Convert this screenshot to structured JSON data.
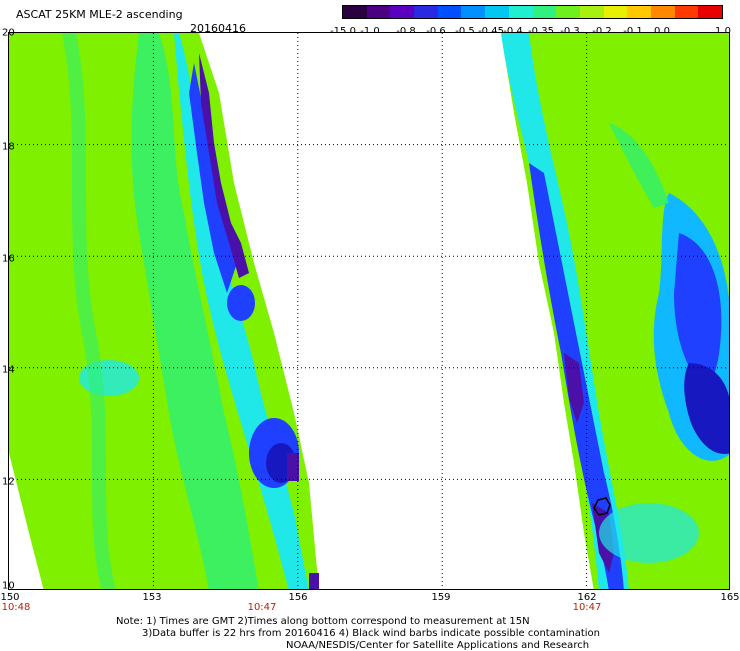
{
  "header": {
    "title": "ASCAT 25KM MLE-2 ascending",
    "date": "20160416"
  },
  "colorbar": {
    "labels": [
      "-15.0",
      "-1.0",
      "-0.8",
      "-0.6",
      "-0.5",
      "-0.45",
      "-0.4",
      "-0.35",
      "-0.3",
      "-0.2",
      "-0.1",
      "0.0",
      "1.0"
    ],
    "colors": [
      "#2a0040",
      "#4b0082",
      "#5a00c0",
      "#2a2ae0",
      "#0050ff",
      "#0090ff",
      "#00c8f0",
      "#20f0d0",
      "#30f080",
      "#6ef020",
      "#a8f010",
      "#e8f000",
      "#ffc800",
      "#ff8800",
      "#ff3a00",
      "#e80000"
    ]
  },
  "axes": {
    "y_ticks": [
      "20",
      "18",
      "16",
      "14",
      "12",
      "10"
    ],
    "x_ticks": [
      "150",
      "153",
      "156",
      "159",
      "162",
      "165"
    ],
    "time_labels": [
      "10:48",
      "10:47",
      "10:47"
    ]
  },
  "notes": {
    "line1": "Note: 1) Times are GMT 2)Times along bottom correspond to measurement at 15N",
    "line2": "3)Data buffer is 22 hrs from 20160416 4) Black wind barbs indicate possible contamination",
    "line3": "NOAA/NESDIS/Center for Satellite Applications and Research"
  },
  "map": {
    "lon_range": [
      150,
      165
    ],
    "lat_range": [
      10,
      20
    ],
    "palette": {
      "background": "#7ef000",
      "mid": "#30f070",
      "cyan": "#20e8e8",
      "sky": "#10b8ff",
      "blue": "#2040ff",
      "deep": "#1818c0",
      "purple": "#4a10a8",
      "dark": "#2a0048"
    },
    "swath_colors": [
      "#7ef000",
      "#7ef000",
      "#30f070",
      "#20e8e8"
    ],
    "black_barb": "hexagon"
  }
}
